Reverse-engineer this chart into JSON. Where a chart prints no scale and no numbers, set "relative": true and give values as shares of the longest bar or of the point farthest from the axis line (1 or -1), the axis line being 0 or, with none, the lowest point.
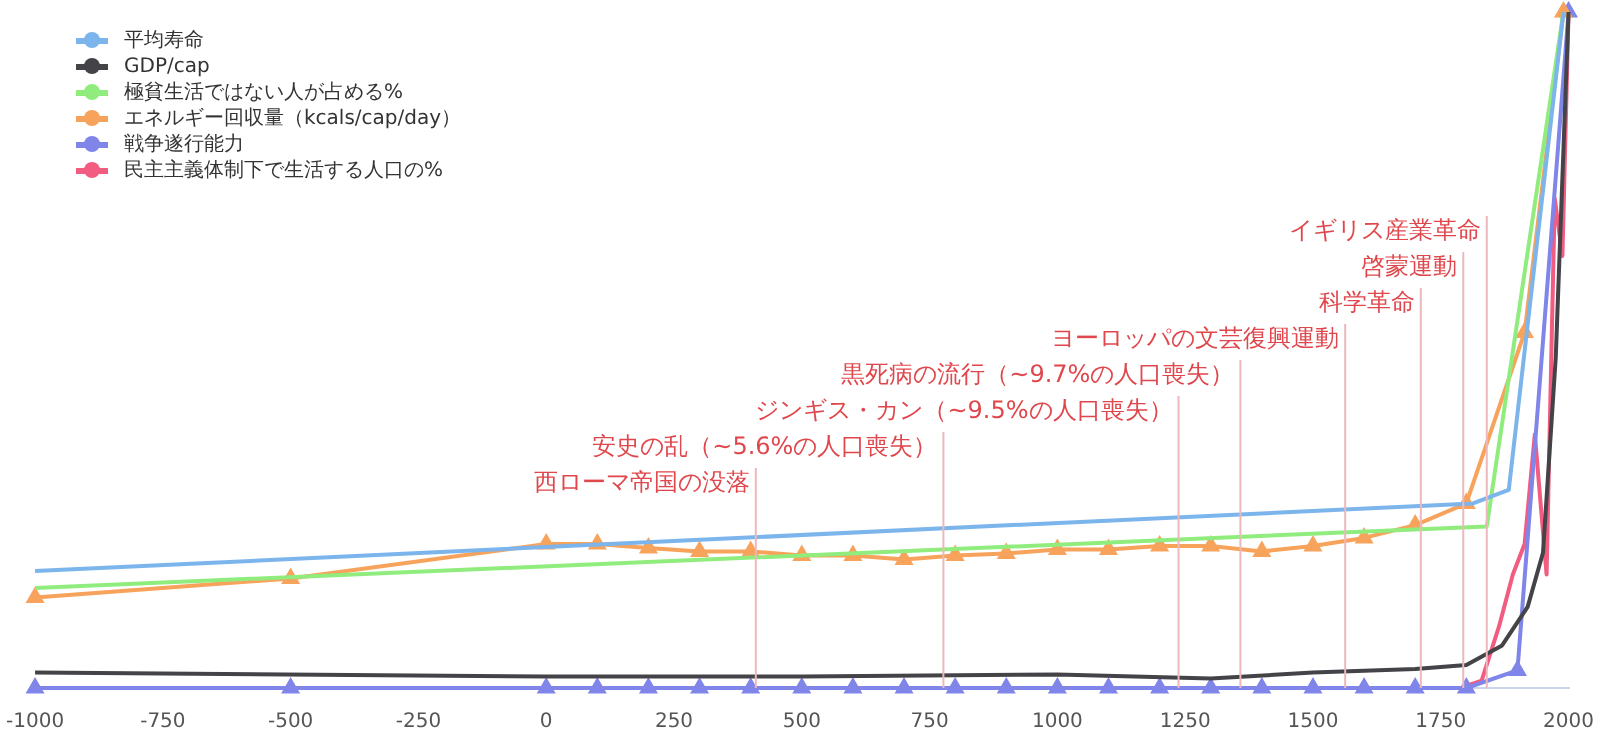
{
  "chart_data": {
    "type": "line",
    "relative": true,
    "xlim": [
      -1000,
      2000
    ],
    "xticks": [
      -1000,
      -750,
      -500,
      -250,
      0,
      250,
      500,
      750,
      1000,
      1250,
      1500,
      1750,
      2000
    ],
    "grid": false,
    "legend": "top left",
    "line_style": "solid",
    "series": [
      {
        "name": "平均寿命",
        "color": "#7cb5ec",
        "marker": "none",
        "x": [
          -1000,
          1813,
          1883,
          1990
        ],
        "values": [
          0.173,
          0.273,
          0.293,
          1
        ]
      },
      {
        "name": "GDP/cap",
        "color": "#434348",
        "marker": "none",
        "x": [
          -1000,
          0,
          500,
          1000,
          1300,
          1500,
          1700,
          1800,
          1870,
          1920,
          1950,
          1975,
          2000
        ],
        "values": [
          0.023,
          0.017,
          0.017,
          0.02,
          0.014,
          0.023,
          0.028,
          0.034,
          0.063,
          0.12,
          0.2,
          0.49,
          1
        ]
      },
      {
        "name": "極貧生活ではない人が占める%",
        "color": "#90ed7d",
        "marker": "none",
        "x": [
          -1000,
          1840,
          1990
        ],
        "values": [
          0.148,
          0.239,
          1
        ]
      },
      {
        "name": "エネルギー回収量（kcals/cap/day）",
        "color": "#f7a35c",
        "marker": "triangle",
        "x": [
          -1000,
          -500,
          0,
          100,
          200,
          300,
          400,
          500,
          600,
          700,
          800,
          900,
          1000,
          1100,
          1200,
          1300,
          1400,
          1500,
          1600,
          1700,
          1800,
          1914,
          1990
        ],
        "values": [
          0.134,
          0.162,
          0.213,
          0.213,
          0.207,
          0.202,
          0.202,
          0.196,
          0.196,
          0.19,
          0.196,
          0.199,
          0.205,
          0.205,
          0.21,
          0.21,
          0.202,
          0.21,
          0.222,
          0.241,
          0.273,
          0.526,
          1
        ]
      },
      {
        "name": "戦争遂行能力",
        "color": "#8085e9",
        "marker": "triangle",
        "x": [
          -1000,
          -500,
          0,
          100,
          200,
          300,
          400,
          500,
          600,
          700,
          800,
          900,
          1000,
          1100,
          1200,
          1300,
          1400,
          1500,
          1600,
          1700,
          1800,
          1900,
          2000
        ],
        "values": [
          0,
          0,
          0,
          0,
          0,
          0,
          0,
          0,
          0,
          0,
          0,
          0,
          0,
          0,
          0,
          0,
          0,
          0,
          0,
          0,
          0,
          0.026,
          1
        ]
      },
      {
        "name": "民主主義体制下で生活する人口の%",
        "color": "#f15c80",
        "marker": "none",
        "x": [
          1800,
          1830,
          1864,
          1891,
          1914,
          1934,
          1957,
          1973,
          1988,
          2000
        ],
        "values": [
          0.003,
          0.011,
          0.091,
          0.168,
          0.213,
          0.375,
          0.168,
          0.724,
          0.639,
          1
        ]
      }
    ],
    "ref_lines": [
      {
        "axis": "x",
        "value": 410,
        "label": "西ローマ帝国の没落",
        "color": "#ecb8bc"
      },
      {
        "axis": "x",
        "value": 777,
        "label": "安史の乱（~5.6%の人口喪失）",
        "color": "#ecb8bc"
      },
      {
        "axis": "x",
        "value": 1237,
        "label": "ジンギス・カン（~9.5%の人口喪失）",
        "color": "#ecb8bc"
      },
      {
        "axis": "x",
        "value": 1358,
        "label": "黒死病の流行（~9.7%の人口喪失）",
        "color": "#ecb8bc"
      },
      {
        "axis": "x",
        "value": 1563,
        "label": "ヨーロッパの文芸復興運動",
        "color": "#ecb8bc"
      },
      {
        "axis": "x",
        "value": 1711,
        "label": "科学革命",
        "color": "#ecb8bc"
      },
      {
        "axis": "x",
        "value": 1794,
        "label": "啓蒙運動",
        "color": "#ecb8bc"
      },
      {
        "axis": "x",
        "value": 1840,
        "label": "イギリス産業革命",
        "color": "#ecb8bc"
      }
    ]
  }
}
